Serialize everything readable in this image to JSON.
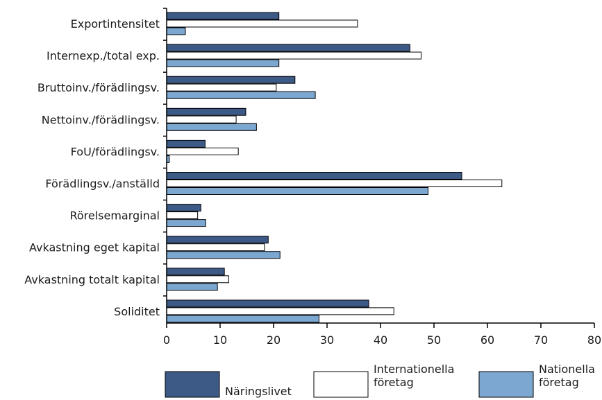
{
  "chart_data": {
    "type": "bar",
    "orientation": "horizontal",
    "title": "",
    "xlabel": "",
    "ylabel": "",
    "xlim": [
      0,
      80
    ],
    "xticks": [
      0,
      10,
      20,
      30,
      40,
      50,
      60,
      70,
      80
    ],
    "grid": false,
    "legend_position": "bottom",
    "categories": [
      "Exportintensitet",
      "Internexp./total exp.",
      "Bruttoinv./förädlingsv.",
      "Nettoinv./förädlingsv.",
      "FoU/förädlingsv.",
      "Förädlingsv./anställd",
      "Rörelsemarginal",
      "Avkastning eget kapital",
      "Avkastning totalt kapital",
      "Soliditet"
    ],
    "series": [
      {
        "name": "Näringslivet",
        "legend_lines": [
          "Näringslivet"
        ],
        "color": "#3d5a87",
        "values": [
          21,
          45.5,
          24,
          14.8,
          7.2,
          55.2,
          6.4,
          19,
          10.8,
          37.8
        ]
      },
      {
        "name": "Internationella företag",
        "legend_lines": [
          "Internationella",
          "företag"
        ],
        "color": "#ffffff",
        "values": [
          35.7,
          47.6,
          20.5,
          13,
          13.4,
          62.7,
          5.8,
          18.3,
          11.6,
          42.5
        ]
      },
      {
        "name": "Nationella företag",
        "legend_lines": [
          "Nationella",
          "företag"
        ],
        "color": "#7ba7d1",
        "values": [
          3.5,
          21,
          27.8,
          16.8,
          0.5,
          48.9,
          7.3,
          21.2,
          9.5,
          28.5
        ]
      }
    ]
  }
}
